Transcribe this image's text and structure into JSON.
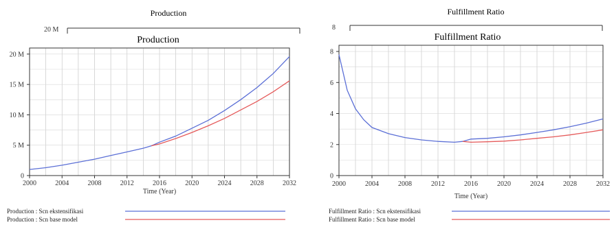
{
  "chart_data": [
    {
      "type": "line",
      "title": "Production",
      "outer_title": "Production",
      "outer_y_fragment": "20 M",
      "xlabel": "Time (Year)",
      "ylabel": "",
      "xlim": [
        2000,
        2032
      ],
      "ylim": [
        0,
        21000000
      ],
      "x_ticks": [
        2000,
        2004,
        2008,
        2012,
        2016,
        2020,
        2024,
        2028,
        2032
      ],
      "y_ticks": [
        0,
        5000000,
        10000000,
        15000000,
        20000000
      ],
      "y_tick_labels": [
        "0",
        "5 M",
        "10 M",
        "15 M",
        "20 M"
      ],
      "grid": true,
      "legend_position": "bottom",
      "series": [
        {
          "name": "Production : Scn ekstensifikasi",
          "color": "#5b6fd6",
          "x": [
            2000,
            2002,
            2004,
            2006,
            2008,
            2010,
            2012,
            2014,
            2015,
            2016,
            2018,
            2020,
            2022,
            2024,
            2026,
            2028,
            2030,
            2032
          ],
          "y": [
            1000000,
            1300000,
            1700000,
            2200000,
            2700000,
            3300000,
            3900000,
            4500000,
            4900000,
            5500000,
            6500000,
            7800000,
            9100000,
            10700000,
            12500000,
            14500000,
            16800000,
            19600000
          ]
        },
        {
          "name": "Production : Scn base model",
          "color": "#e55a5a",
          "x": [
            2015,
            2016,
            2018,
            2020,
            2022,
            2024,
            2026,
            2028,
            2030,
            2032
          ],
          "y": [
            4900000,
            5200000,
            6100000,
            7100000,
            8200000,
            9400000,
            10800000,
            12200000,
            13800000,
            15600000
          ]
        }
      ]
    },
    {
      "type": "line",
      "title": "Fulfillment Ratio",
      "outer_title": "Fulfillment Ratio",
      "outer_y_fragment": "8",
      "xlabel": "Time (Year)",
      "ylabel": "",
      "xlim": [
        2000,
        2032
      ],
      "ylim": [
        0,
        8.4
      ],
      "x_ticks": [
        2000,
        2004,
        2008,
        2012,
        2016,
        2020,
        2024,
        2028,
        2032
      ],
      "y_ticks": [
        0,
        2,
        4,
        6,
        8
      ],
      "y_tick_labels": [
        "0",
        "2",
        "4",
        "6",
        "8"
      ],
      "grid": true,
      "legend_position": "bottom",
      "series": [
        {
          "name": "Fulfillment Ratio : Scn ekstensifikasi",
          "color": "#5b6fd6",
          "x": [
            2000,
            2001,
            2002,
            2003,
            2004,
            2006,
            2008,
            2010,
            2012,
            2014,
            2015,
            2016,
            2018,
            2020,
            2022,
            2024,
            2026,
            2028,
            2030,
            2032
          ],
          "y": [
            7.8,
            5.5,
            4.3,
            3.6,
            3.1,
            2.7,
            2.45,
            2.3,
            2.2,
            2.15,
            2.2,
            2.35,
            2.4,
            2.5,
            2.62,
            2.78,
            2.95,
            3.15,
            3.38,
            3.65
          ]
        },
        {
          "name": "Fulfillment Ratio : Scn base model",
          "color": "#e55a5a",
          "x": [
            2015,
            2016,
            2018,
            2020,
            2022,
            2024,
            2026,
            2028,
            2030,
            2032
          ],
          "y": [
            2.2,
            2.15,
            2.18,
            2.22,
            2.3,
            2.4,
            2.5,
            2.62,
            2.78,
            2.95
          ]
        }
      ]
    }
  ]
}
